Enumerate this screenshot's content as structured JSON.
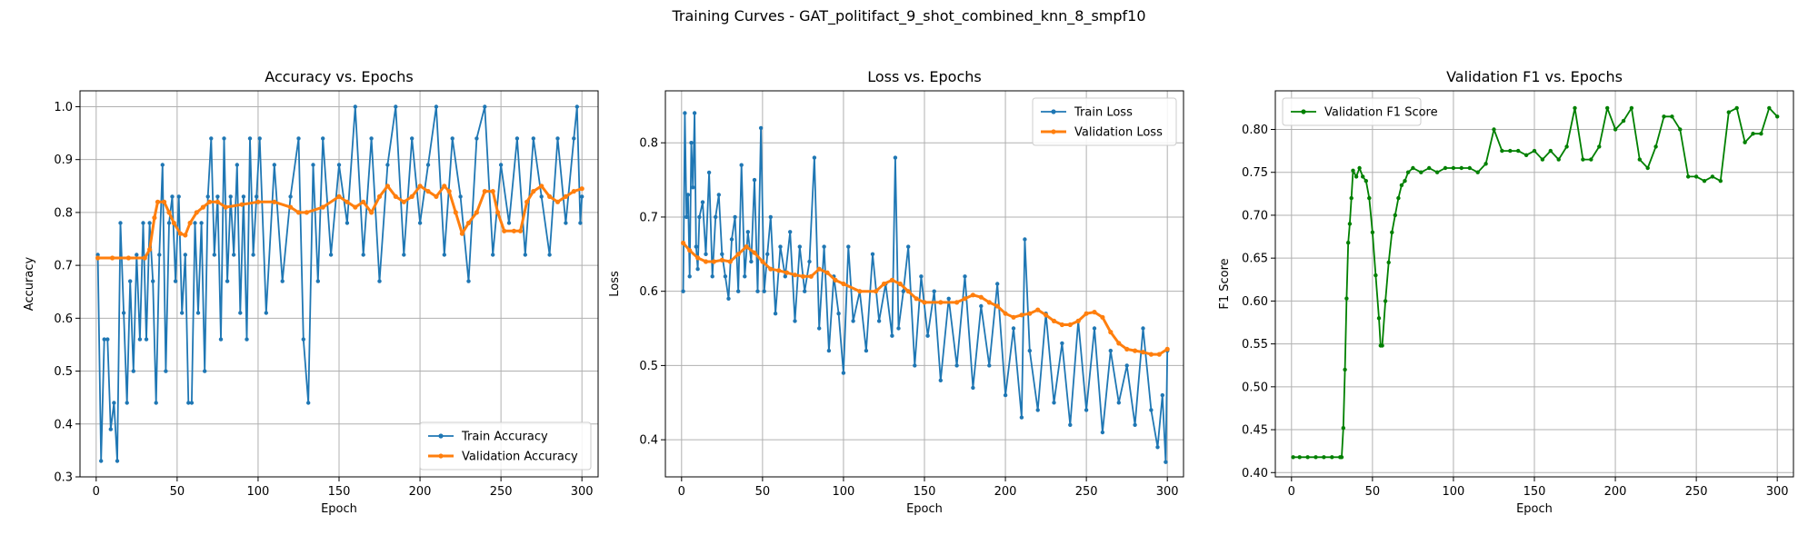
{
  "figure": {
    "suptitle": "Training Curves - GAT_politifact_9_shot_combined_knn_8_smpf10"
  },
  "chart_data": [
    {
      "type": "line",
      "title": "Accuracy vs. Epochs",
      "xlabel": "Epoch",
      "ylabel": "Accuracy",
      "xlim": [
        -10,
        310
      ],
      "ylim": [
        0.3,
        1.03
      ],
      "xticks": [
        0,
        50,
        100,
        150,
        200,
        250,
        300
      ],
      "yticks": [
        0.3,
        0.4,
        0.5,
        0.6,
        0.7,
        0.8,
        0.9,
        1.0
      ],
      "ytick_labels": [
        "0.3",
        "0.4",
        "0.5",
        "0.6",
        "0.7",
        "0.8",
        "0.9",
        "1.0"
      ],
      "grid": true,
      "legend_position": "lower-right",
      "series": [
        {
          "name": "Train Accuracy",
          "color": "#1f77b4",
          "x": [
            1,
            3,
            5,
            7,
            9,
            11,
            13,
            15,
            17,
            19,
            21,
            23,
            25,
            27,
            29,
            31,
            33,
            35,
            37,
            39,
            41,
            43,
            45,
            47,
            49,
            51,
            53,
            55,
            57,
            59,
            61,
            63,
            65,
            67,
            69,
            71,
            73,
            75,
            77,
            79,
            81,
            83,
            85,
            87,
            89,
            91,
            93,
            95,
            97,
            99,
            101,
            105,
            110,
            115,
            120,
            125,
            128,
            131,
            134,
            137,
            140,
            145,
            150,
            155,
            160,
            165,
            170,
            175,
            180,
            185,
            190,
            195,
            200,
            205,
            210,
            215,
            220,
            225,
            230,
            235,
            240,
            245,
            250,
            255,
            260,
            265,
            270,
            275,
            280,
            285,
            290,
            295,
            297,
            299,
            300
          ],
          "y": [
            0.72,
            0.33,
            0.56,
            0.56,
            0.39,
            0.44,
            0.33,
            0.78,
            0.61,
            0.44,
            0.67,
            0.5,
            0.72,
            0.56,
            0.78,
            0.56,
            0.78,
            0.67,
            0.44,
            0.72,
            0.89,
            0.5,
            0.78,
            0.83,
            0.67,
            0.83,
            0.61,
            0.72,
            0.44,
            0.44,
            0.78,
            0.61,
            0.78,
            0.5,
            0.83,
            0.94,
            0.72,
            0.83,
            0.56,
            0.94,
            0.67,
            0.83,
            0.72,
            0.89,
            0.61,
            0.83,
            0.56,
            0.94,
            0.72,
            0.83,
            0.94,
            0.61,
            0.89,
            0.67,
            0.83,
            0.94,
            0.56,
            0.44,
            0.89,
            0.67,
            0.94,
            0.72,
            0.89,
            0.78,
            1.0,
            0.72,
            0.94,
            0.67,
            0.89,
            1.0,
            0.72,
            0.94,
            0.78,
            0.89,
            1.0,
            0.72,
            0.94,
            0.83,
            0.67,
            0.94,
            1.0,
            0.72,
            0.89,
            0.78,
            0.94,
            0.72,
            0.94,
            0.83,
            0.72,
            0.94,
            0.78,
            0.94,
            1.0,
            0.78,
            0.83
          ]
        },
        {
          "name": "Validation Accuracy",
          "color": "#ff7f0e",
          "x": [
            1,
            10,
            20,
            30,
            33,
            36,
            38,
            42,
            45,
            48,
            52,
            55,
            58,
            62,
            66,
            70,
            75,
            80,
            90,
            100,
            110,
            120,
            125,
            130,
            140,
            150,
            155,
            160,
            165,
            170,
            175,
            180,
            185,
            190,
            195,
            200,
            205,
            210,
            215,
            218,
            222,
            226,
            230,
            235,
            240,
            245,
            248,
            252,
            258,
            262,
            266,
            270,
            275,
            280,
            285,
            290,
            295,
            300
          ],
          "y": [
            0.714,
            0.714,
            0.714,
            0.714,
            0.73,
            0.79,
            0.82,
            0.82,
            0.8,
            0.78,
            0.76,
            0.757,
            0.78,
            0.8,
            0.81,
            0.82,
            0.82,
            0.81,
            0.815,
            0.82,
            0.82,
            0.81,
            0.8,
            0.8,
            0.81,
            0.83,
            0.82,
            0.81,
            0.82,
            0.8,
            0.83,
            0.85,
            0.83,
            0.82,
            0.83,
            0.85,
            0.84,
            0.83,
            0.85,
            0.84,
            0.8,
            0.76,
            0.78,
            0.8,
            0.84,
            0.84,
            0.8,
            0.765,
            0.765,
            0.765,
            0.82,
            0.84,
            0.85,
            0.83,
            0.82,
            0.83,
            0.84,
            0.845
          ]
        }
      ]
    },
    {
      "type": "line",
      "title": "Loss vs. Epochs",
      "xlabel": "Epoch",
      "ylabel": "Loss",
      "xlim": [
        -10,
        310
      ],
      "ylim": [
        0.35,
        0.87
      ],
      "xticks": [
        0,
        50,
        100,
        150,
        200,
        250,
        300
      ],
      "yticks": [
        0.4,
        0.5,
        0.6,
        0.7,
        0.8
      ],
      "ytick_labels": [
        "0.4",
        "0.5",
        "0.6",
        "0.7",
        "0.8"
      ],
      "grid": true,
      "legend_position": "top-right",
      "series": [
        {
          "name": "Train Loss",
          "color": "#1f77b4",
          "x": [
            1,
            2,
            3,
            4,
            5,
            6,
            7,
            8,
            9,
            10,
            11,
            13,
            15,
            17,
            19,
            21,
            23,
            25,
            27,
            29,
            31,
            33,
            35,
            37,
            39,
            41,
            43,
            45,
            47,
            49,
            51,
            53,
            55,
            58,
            61,
            64,
            67,
            70,
            73,
            76,
            79,
            82,
            85,
            88,
            91,
            94,
            97,
            100,
            103,
            106,
            110,
            114,
            118,
            122,
            126,
            130,
            132,
            134,
            137,
            140,
            144,
            148,
            152,
            156,
            160,
            165,
            170,
            175,
            180,
            185,
            190,
            195,
            200,
            205,
            210,
            212,
            215,
            220,
            225,
            230,
            235,
            240,
            245,
            250,
            255,
            260,
            265,
            270,
            275,
            280,
            285,
            290,
            294,
            297,
            299,
            300
          ],
          "y": [
            0.6,
            0.84,
            0.7,
            0.73,
            0.62,
            0.8,
            0.74,
            0.84,
            0.66,
            0.63,
            0.7,
            0.72,
            0.65,
            0.76,
            0.62,
            0.7,
            0.73,
            0.65,
            0.62,
            0.59,
            0.67,
            0.7,
            0.6,
            0.77,
            0.62,
            0.68,
            0.64,
            0.75,
            0.6,
            0.82,
            0.6,
            0.65,
            0.7,
            0.57,
            0.66,
            0.62,
            0.68,
            0.56,
            0.66,
            0.6,
            0.64,
            0.78,
            0.55,
            0.66,
            0.52,
            0.62,
            0.57,
            0.49,
            0.66,
            0.56,
            0.6,
            0.52,
            0.65,
            0.56,
            0.61,
            0.54,
            0.78,
            0.55,
            0.6,
            0.66,
            0.5,
            0.62,
            0.54,
            0.6,
            0.48,
            0.59,
            0.5,
            0.62,
            0.47,
            0.58,
            0.5,
            0.61,
            0.46,
            0.55,
            0.43,
            0.67,
            0.52,
            0.44,
            0.57,
            0.45,
            0.53,
            0.42,
            0.56,
            0.44,
            0.55,
            0.41,
            0.52,
            0.45,
            0.5,
            0.42,
            0.55,
            0.44,
            0.39,
            0.46,
            0.37,
            0.52
          ]
        },
        {
          "name": "Validation Loss",
          "color": "#ff7f0e",
          "x": [
            1,
            5,
            10,
            15,
            20,
            25,
            30,
            35,
            40,
            45,
            50,
            55,
            60,
            65,
            70,
            75,
            80,
            85,
            90,
            95,
            100,
            110,
            120,
            125,
            130,
            135,
            140,
            145,
            150,
            160,
            170,
            175,
            180,
            185,
            190,
            195,
            200,
            205,
            210,
            215,
            220,
            225,
            230,
            235,
            240,
            245,
            250,
            255,
            260,
            265,
            270,
            275,
            280,
            285,
            290,
            295,
            300
          ],
          "y": [
            0.665,
            0.655,
            0.645,
            0.64,
            0.64,
            0.642,
            0.64,
            0.65,
            0.66,
            0.652,
            0.64,
            0.63,
            0.628,
            0.625,
            0.622,
            0.62,
            0.62,
            0.63,
            0.625,
            0.615,
            0.61,
            0.6,
            0.6,
            0.61,
            0.615,
            0.61,
            0.6,
            0.59,
            0.585,
            0.585,
            0.585,
            0.59,
            0.595,
            0.592,
            0.585,
            0.58,
            0.57,
            0.565,
            0.568,
            0.57,
            0.575,
            0.568,
            0.56,
            0.555,
            0.555,
            0.56,
            0.57,
            0.572,
            0.565,
            0.545,
            0.53,
            0.522,
            0.52,
            0.518,
            0.515,
            0.515,
            0.522
          ]
        }
      ]
    },
    {
      "type": "line",
      "title": "Validation F1 vs. Epochs",
      "xlabel": "Epoch",
      "ylabel": "F1 Score",
      "xlim": [
        -10,
        310
      ],
      "ylim": [
        0.395,
        0.845
      ],
      "xticks": [
        0,
        50,
        100,
        150,
        200,
        250,
        300
      ],
      "yticks": [
        0.4,
        0.45,
        0.5,
        0.55,
        0.6,
        0.65,
        0.7,
        0.75,
        0.8
      ],
      "ytick_labels": [
        "0.40",
        "0.45",
        "0.50",
        "0.55",
        "0.60",
        "0.65",
        "0.70",
        "0.75",
        "0.80"
      ],
      "grid": true,
      "legend_position": "top-left",
      "series": [
        {
          "name": "Validation F1 Score",
          "color": "#008000",
          "x": [
            1,
            5,
            10,
            15,
            20,
            25,
            30,
            31,
            32,
            33,
            34,
            35,
            36,
            37,
            38,
            40,
            42,
            44,
            46,
            48,
            50,
            52,
            54,
            55,
            56,
            58,
            60,
            62,
            64,
            66,
            68,
            70,
            72,
            75,
            80,
            85,
            90,
            95,
            100,
            105,
            110,
            115,
            120,
            125,
            130,
            135,
            140,
            145,
            150,
            155,
            160,
            165,
            170,
            175,
            180,
            185,
            190,
            195,
            200,
            205,
            210,
            215,
            220,
            225,
            230,
            235,
            240,
            245,
            250,
            255,
            260,
            265,
            270,
            275,
            280,
            285,
            290,
            295,
            300
          ],
          "y": [
            0.418,
            0.418,
            0.418,
            0.418,
            0.418,
            0.418,
            0.418,
            0.418,
            0.452,
            0.52,
            0.603,
            0.668,
            0.69,
            0.72,
            0.752,
            0.745,
            0.755,
            0.745,
            0.74,
            0.72,
            0.68,
            0.63,
            0.58,
            0.548,
            0.548,
            0.6,
            0.645,
            0.68,
            0.7,
            0.72,
            0.735,
            0.74,
            0.75,
            0.755,
            0.75,
            0.755,
            0.75,
            0.755,
            0.755,
            0.755,
            0.755,
            0.75,
            0.76,
            0.8,
            0.775,
            0.775,
            0.775,
            0.77,
            0.775,
            0.765,
            0.775,
            0.765,
            0.78,
            0.825,
            0.765,
            0.765,
            0.78,
            0.825,
            0.8,
            0.81,
            0.825,
            0.765,
            0.755,
            0.78,
            0.815,
            0.815,
            0.8,
            0.745,
            0.745,
            0.74,
            0.745,
            0.74,
            0.82,
            0.825,
            0.785,
            0.795,
            0.795,
            0.825,
            0.815
          ]
        }
      ]
    }
  ]
}
